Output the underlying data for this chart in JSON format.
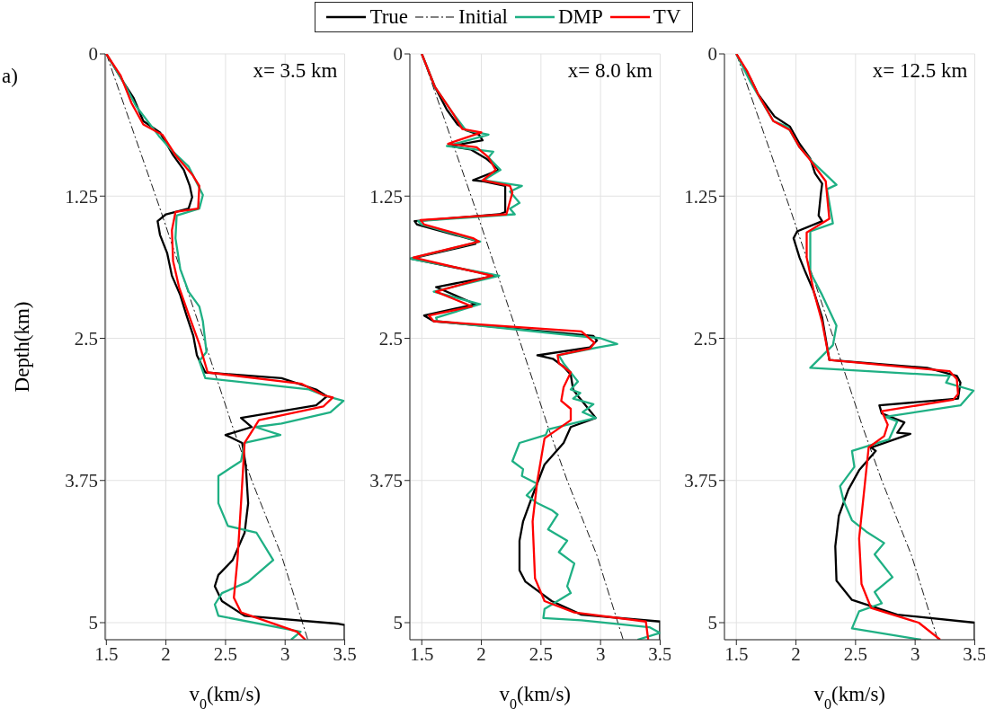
{
  "chart_data": [
    {
      "type": "line",
      "title": "x= 3.5 km",
      "xlabel": "v$_{0}$(km/s)",
      "ylabel": "Depth(km)",
      "xlim": [
        1.49,
        3.5
      ],
      "xticks": [
        1.5,
        2,
        2.5,
        3,
        3.5
      ],
      "ylim": [
        5.15,
        0
      ],
      "yticks": [
        0,
        1.25,
        2.5,
        3.75,
        5
      ],
      "grid": true,
      "legend": "top",
      "annotations": [
        "a)"
      ],
      "series": [
        {
          "name": "True",
          "color": "#000000",
          "x": [
            1.5,
            1.65,
            1.73,
            1.81,
            1.95,
            2.06,
            2.15,
            2.2,
            2.22,
            2.19,
            2.0,
            1.93,
            1.95,
            2.01,
            2.05,
            2.12,
            2.17,
            2.23,
            2.26,
            2.33,
            2.97,
            3.26,
            3.35,
            3.26,
            2.63,
            2.72,
            2.5,
            2.64,
            2.67,
            2.69,
            2.66,
            2.56,
            2.44,
            2.41,
            2.47,
            2.66,
            3.45,
            3.5,
            3.5
          ],
          "values": [
            0,
            0.26,
            0.39,
            0.59,
            0.69,
            0.89,
            1.02,
            1.16,
            1.26,
            1.36,
            1.41,
            1.47,
            1.59,
            1.75,
            1.95,
            2.12,
            2.29,
            2.48,
            2.65,
            2.8,
            2.85,
            2.95,
            3.01,
            3.09,
            3.2,
            3.28,
            3.35,
            3.42,
            3.62,
            3.95,
            4.21,
            4.45,
            4.58,
            4.68,
            4.81,
            4.94,
            5.01,
            5.02,
            5.15
          ]
        },
        {
          "name": "Initial",
          "color": "#000000",
          "line_style": "dashdot",
          "x": [
            1.5,
            1.96,
            2.29,
            2.56,
            2.72,
            2.97,
            3.19
          ],
          "values": [
            0,
            1.39,
            2.42,
            3.28,
            3.75,
            4.41,
            5.15
          ]
        },
        {
          "name": "DMP",
          "color": "#1fb084",
          "x": [
            1.5,
            1.65,
            1.75,
            1.94,
            2.06,
            2.19,
            2.31,
            2.28,
            2.09,
            2.08,
            2.12,
            2.19,
            2.28,
            2.31,
            2.34,
            2.28,
            2.33,
            3.2,
            3.32,
            3.49,
            3.38,
            2.97,
            2.75,
            2.96,
            2.66,
            2.63,
            2.44,
            2.44,
            2.52,
            2.76,
            2.9,
            2.69,
            2.47,
            2.41,
            2.44,
            3.13,
            3.05
          ],
          "values": [
            0,
            0.26,
            0.46,
            0.72,
            0.86,
            0.99,
            1.24,
            1.36,
            1.42,
            1.62,
            1.89,
            2.09,
            2.22,
            2.35,
            2.62,
            2.7,
            2.85,
            2.95,
            3.0,
            3.05,
            3.15,
            3.25,
            3.28,
            3.35,
            3.42,
            3.58,
            3.71,
            3.95,
            4.15,
            4.21,
            4.45,
            4.64,
            4.74,
            4.84,
            4.94,
            5.08,
            5.15
          ]
        },
        {
          "name": "TV",
          "color": "#ff0000",
          "x": [
            1.5,
            1.62,
            1.71,
            1.81,
            1.97,
            2.08,
            2.22,
            2.28,
            2.27,
            2.08,
            2.05,
            2.06,
            2.11,
            2.19,
            2.28,
            2.35,
            3.14,
            3.32,
            3.4,
            3.32,
            2.78,
            2.72,
            2.66,
            2.63,
            2.6,
            2.57,
            2.63,
            3.1,
            3.17
          ],
          "values": [
            0,
            0.19,
            0.43,
            0.62,
            0.71,
            0.89,
            1.06,
            1.16,
            1.36,
            1.39,
            1.55,
            1.82,
            2.05,
            2.29,
            2.55,
            2.8,
            2.9,
            3.0,
            3.02,
            3.1,
            3.22,
            3.32,
            3.42,
            3.95,
            4.45,
            4.78,
            4.91,
            5.08,
            5.15
          ]
        }
      ]
    },
    {
      "type": "line",
      "title": "x= 8.0 km",
      "xlabel": "v$_{0}$(km/s)",
      "xlim": [
        1.4,
        3.5
      ],
      "xticks": [
        1.5,
        2,
        2.5,
        3,
        3.5
      ],
      "ylim": [
        5.15,
        0
      ],
      "yticks": [
        0,
        1.25,
        2.5,
        3.75,
        5
      ],
      "grid": true,
      "series": [
        {
          "color": "#000000",
          "x": [
            1.5,
            1.61,
            1.71,
            1.8,
            1.87,
            1.98,
            2.01,
            1.74,
            1.91,
            2.04,
            2.15,
            1.93,
            2.02,
            2.2,
            2.2,
            2.15,
            1.44,
            1.46,
            1.95,
            1.95,
            1.41,
            2.12,
            1.62,
            1.95,
            1.52,
            1.6,
            2.94,
            2.97,
            2.91,
            2.47,
            2.6,
            2.69,
            2.75,
            2.77,
            2.82,
            2.96,
            2.75,
            2.69,
            2.53,
            2.43,
            2.35,
            2.32,
            2.32,
            2.37,
            2.59,
            2.84,
            3.5,
            3.5
          ],
          "values": [
            0,
            0.29,
            0.49,
            0.62,
            0.67,
            0.71,
            0.76,
            0.81,
            0.84,
            0.92,
            1.02,
            1.11,
            1.12,
            1.16,
            1.39,
            1.41,
            1.47,
            1.5,
            1.64,
            1.67,
            1.8,
            1.95,
            2.05,
            2.2,
            2.3,
            2.35,
            2.48,
            2.52,
            2.58,
            2.65,
            2.68,
            2.75,
            2.82,
            2.95,
            3.02,
            3.2,
            3.28,
            3.42,
            3.61,
            3.88,
            4.11,
            4.28,
            4.54,
            4.64,
            4.81,
            4.93,
            4.99,
            5.15
          ]
        },
        {
          "color": "#000000",
          "line_style": "dashdot",
          "x": [
            1.5,
            1.96,
            2.29,
            2.56,
            2.72,
            2.97,
            3.19
          ],
          "values": [
            0,
            1.39,
            2.42,
            3.28,
            3.75,
            4.41,
            5.15
          ]
        },
        {
          "color": "#1fb084",
          "x": [
            1.5,
            1.61,
            1.76,
            1.87,
            2.06,
            1.71,
            1.95,
            2.1,
            2.06,
            2.16,
            2.02,
            2.34,
            2.24,
            2.32,
            2.24,
            2.28,
            1.47,
            1.5,
            1.99,
            1.4,
            2.15,
            1.6,
            1.99,
            1.62,
            1.63,
            3.0,
            3.14,
            2.98,
            2.65,
            2.69,
            2.81,
            2.75,
            2.83,
            2.77,
            2.94,
            2.85,
            2.96,
            2.56,
            2.54,
            2.32,
            2.26,
            2.35,
            2.34,
            2.47,
            2.38,
            2.47,
            2.59,
            2.64,
            2.56,
            2.72,
            2.65,
            2.78,
            2.72,
            2.75,
            2.53,
            2.52,
            2.84,
            3.41,
            3.5,
            3.31
          ],
          "values": [
            0,
            0.29,
            0.52,
            0.67,
            0.71,
            0.81,
            0.84,
            0.86,
            0.91,
            1.02,
            1.11,
            1.16,
            1.21,
            1.31,
            1.36,
            1.41,
            1.47,
            1.5,
            1.65,
            1.8,
            1.95,
            2.09,
            2.2,
            2.32,
            2.35,
            2.5,
            2.55,
            2.58,
            2.65,
            2.72,
            2.88,
            2.95,
            2.98,
            3.03,
            3.08,
            3.15,
            3.2,
            3.3,
            3.35,
            3.42,
            3.58,
            3.65,
            3.71,
            3.78,
            3.88,
            3.95,
            4.01,
            4.05,
            4.18,
            4.28,
            4.38,
            4.48,
            4.68,
            4.74,
            4.88,
            4.96,
            4.98,
            5.04,
            5.09,
            5.15
          ]
        },
        {
          "color": "#ff0000",
          "x": [
            1.5,
            1.61,
            1.76,
            1.84,
            2.0,
            1.72,
            1.96,
            2.06,
            2.12,
            2.01,
            2.24,
            2.26,
            2.21,
            1.49,
            1.52,
            1.93,
            1.98,
            1.43,
            2.09,
            1.62,
            1.92,
            1.56,
            1.6,
            2.84,
            2.95,
            2.91,
            2.64,
            2.65,
            2.75,
            2.69,
            2.67,
            2.75,
            2.75,
            2.53,
            2.47,
            2.43,
            2.45,
            2.53,
            2.78,
            3.38,
            3.4
          ],
          "values": [
            0,
            0.29,
            0.52,
            0.66,
            0.69,
            0.79,
            0.82,
            0.91,
            1.02,
            1.11,
            1.16,
            1.22,
            1.41,
            1.46,
            1.5,
            1.62,
            1.65,
            1.79,
            1.95,
            2.09,
            2.22,
            2.3,
            2.35,
            2.44,
            2.54,
            2.59,
            2.65,
            2.72,
            2.8,
            2.93,
            3.05,
            3.12,
            3.22,
            3.38,
            3.75,
            4.11,
            4.61,
            4.81,
            4.91,
            4.99,
            5.15
          ]
        }
      ]
    },
    {
      "type": "line",
      "title": "x= 12.5 km",
      "xlabel": "v$_{0}$(km/s)",
      "xlim": [
        1.4,
        3.5
      ],
      "xticks": [
        1.5,
        2,
        2.5,
        3,
        3.5
      ],
      "ylim": [
        5.15,
        0
      ],
      "yticks": [
        0,
        1.25,
        2.5,
        3.75,
        5
      ],
      "grid": true,
      "series": [
        {
          "color": "#000000",
          "x": [
            1.5,
            1.62,
            1.68,
            1.82,
            1.95,
            2.03,
            2.12,
            2.16,
            2.22,
            2.21,
            2.19,
            2.22,
            2.01,
            1.98,
            2.03,
            2.08,
            2.15,
            2.22,
            2.28,
            3.1,
            3.35,
            3.38,
            3.36,
            2.7,
            2.72,
            2.91,
            2.85,
            2.96,
            2.63,
            2.67,
            2.53,
            2.44,
            2.36,
            2.33,
            2.34,
            2.47,
            2.85,
            3.5,
            3.5
          ],
          "values": [
            0,
            0.22,
            0.35,
            0.55,
            0.64,
            0.79,
            0.92,
            1.05,
            1.14,
            1.22,
            1.42,
            1.47,
            1.56,
            1.62,
            1.79,
            1.92,
            2.09,
            2.32,
            2.69,
            2.76,
            2.83,
            2.89,
            3.03,
            3.09,
            3.16,
            3.24,
            3.33,
            3.34,
            3.46,
            3.49,
            3.66,
            3.83,
            4.06,
            4.33,
            4.63,
            4.8,
            4.93,
            5.0,
            5.15
          ]
        },
        {
          "color": "#000000",
          "line_style": "dashdot",
          "x": [
            1.5,
            1.96,
            2.29,
            2.56,
            2.72,
            2.97,
            3.19
          ],
          "values": [
            0,
            1.39,
            2.42,
            3.28,
            3.75,
            4.41,
            5.15
          ]
        },
        {
          "color": "#1fb084",
          "x": [
            1.5,
            1.62,
            1.81,
            1.93,
            2.03,
            2.14,
            2.34,
            2.26,
            2.31,
            2.12,
            2.12,
            2.22,
            2.34,
            2.31,
            2.12,
            3.29,
            3.26,
            3.49,
            3.38,
            2.75,
            2.85,
            2.78,
            2.47,
            2.49,
            2.37,
            2.4,
            2.47,
            2.59,
            2.74,
            2.66,
            2.81,
            2.66,
            2.72,
            2.53,
            2.47,
            3.05
          ],
          "values": [
            0,
            0.25,
            0.59,
            0.64,
            0.82,
            0.95,
            1.15,
            1.19,
            1.49,
            1.56,
            1.92,
            2.12,
            2.39,
            2.56,
            2.76,
            2.83,
            2.89,
            2.96,
            3.09,
            3.19,
            3.23,
            3.39,
            3.49,
            3.63,
            3.8,
            3.93,
            4.1,
            4.2,
            4.3,
            4.4,
            4.6,
            4.73,
            4.83,
            4.9,
            5.05,
            5.15
          ]
        },
        {
          "color": "#ff0000",
          "x": [
            1.5,
            1.59,
            1.68,
            1.81,
            1.95,
            2.03,
            2.11,
            2.25,
            2.28,
            2.09,
            2.09,
            2.15,
            2.22,
            2.28,
            3.29,
            3.35,
            3.36,
            3.32,
            2.72,
            2.77,
            2.74,
            2.61,
            2.58,
            2.53,
            2.55,
            2.63,
            3.03,
            3.21
          ],
          "values": [
            0,
            0.15,
            0.35,
            0.59,
            0.67,
            0.82,
            0.92,
            1.12,
            1.45,
            1.57,
            1.79,
            2.09,
            2.36,
            2.69,
            2.79,
            2.86,
            2.99,
            3.04,
            3.14,
            3.26,
            3.36,
            3.46,
            3.76,
            4.26,
            4.66,
            4.87,
            5.0,
            5.15
          ]
        }
      ]
    }
  ]
}
